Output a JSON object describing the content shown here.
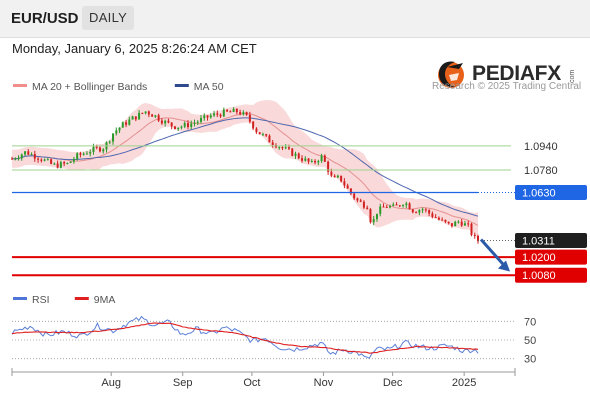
{
  "header": {
    "symbol": "EUR/USD",
    "timeframe": "DAILY"
  },
  "timestamp": "Monday, January 6, 2025 8:26:24 AM CET",
  "branding": {
    "logo_text": "PEDIAFX",
    "logo_suffix": ".com",
    "copyright": "Research © 2025 Trading Central"
  },
  "legend_main": [
    {
      "label": "MA 20 + Bollinger Bands",
      "color": "#f08e8e"
    },
    {
      "label": "MA 50",
      "color": "#2e4a8c"
    }
  ],
  "legend_rsi": [
    {
      "label": "RSI",
      "color": "#4f76d6"
    },
    {
      "label": "9MA",
      "color": "#e02020"
    }
  ],
  "colors": {
    "up": "#2a9b2a",
    "down": "#d22020",
    "support": "#e00000",
    "resistance": "#1f66e5",
    "pivot": "#9fd38f",
    "current": "#1f1f1f",
    "band": "#f7cccc",
    "ma20": "#e59090",
    "ma50": "#5068b0",
    "rsi": "#5a7fd8",
    "rsi_ma": "#e02020",
    "arrow": "#2b5aa8"
  },
  "chart_data": {
    "type": "candlestick",
    "y_range": [
      1.0035,
      1.1265
    ],
    "x_ticks": [
      {
        "label": "Aug",
        "day": 43
      },
      {
        "label": "Sep",
        "day": 74
      },
      {
        "label": "Oct",
        "day": 104
      },
      {
        "label": "Nov",
        "day": 135
      },
      {
        "label": "Dec",
        "day": 165
      },
      {
        "label": "2025",
        "day": 196
      }
    ],
    "levels": [
      {
        "value": 1.094,
        "label": "1.0940",
        "kind": "pivot"
      },
      {
        "value": 1.078,
        "label": "1.0780",
        "kind": "pivot"
      },
      {
        "value": 1.063,
        "label": "1.0630",
        "kind": "resistance"
      },
      {
        "value": 1.0311,
        "label": "1.0311",
        "kind": "current"
      },
      {
        "value": 1.02,
        "label": "1.0200",
        "kind": "support"
      },
      {
        "value": 1.008,
        "label": "1.0080",
        "kind": "support"
      }
    ],
    "close_path": [
      [
        0,
        1.0855
      ],
      [
        6,
        1.09
      ],
      [
        12,
        1.086
      ],
      [
        18,
        1.081
      ],
      [
        24,
        1.082
      ],
      [
        28,
        1.087
      ],
      [
        34,
        1.091
      ],
      [
        40,
        1.093
      ],
      [
        44,
        1.103
      ],
      [
        48,
        1.108
      ],
      [
        52,
        1.112
      ],
      [
        58,
        1.117
      ],
      [
        62,
        1.114
      ],
      [
        66,
        1.11
      ],
      [
        70,
        1.107
      ],
      [
        74,
        1.107
      ],
      [
        80,
        1.11
      ],
      [
        86,
        1.114
      ],
      [
        92,
        1.116
      ],
      [
        98,
        1.117
      ],
      [
        102,
        1.113
      ],
      [
        106,
        1.104
      ],
      [
        112,
        1.097
      ],
      [
        118,
        1.092
      ],
      [
        124,
        1.087
      ],
      [
        130,
        1.082
      ],
      [
        134,
        1.087
      ],
      [
        136,
        1.082
      ],
      [
        139,
        1.071
      ],
      [
        142,
        1.073
      ],
      [
        146,
        1.064
      ],
      [
        150,
        1.057
      ],
      [
        154,
        1.054
      ],
      [
        156,
        1.041
      ],
      [
        158,
        1.05
      ],
      [
        162,
        1.054
      ],
      [
        166,
        1.053
      ],
      [
        170,
        1.057
      ],
      [
        174,
        1.051
      ],
      [
        178,
        1.052
      ],
      [
        182,
        1.048
      ],
      [
        186,
        1.044
      ],
      [
        190,
        1.041
      ],
      [
        194,
        1.044
      ],
      [
        198,
        1.04
      ],
      [
        200,
        1.033
      ],
      [
        202,
        1.031
      ]
    ],
    "rsi": {
      "y_range": [
        20,
        80
      ],
      "ticks": [
        70,
        50,
        30
      ],
      "rsi_path": [
        [
          0,
          58
        ],
        [
          8,
          65
        ],
        [
          15,
          55
        ],
        [
          22,
          59
        ],
        [
          30,
          54
        ],
        [
          37,
          65
        ],
        [
          44,
          60
        ],
        [
          50,
          68
        ],
        [
          56,
          73
        ],
        [
          62,
          66
        ],
        [
          68,
          69
        ],
        [
          74,
          55
        ],
        [
          80,
          62
        ],
        [
          86,
          56
        ],
        [
          92,
          63
        ],
        [
          97,
          60
        ],
        [
          104,
          49
        ],
        [
          110,
          52
        ],
        [
          116,
          42
        ],
        [
          122,
          40
        ],
        [
          128,
          43
        ],
        [
          134,
          47
        ],
        [
          138,
          35
        ],
        [
          144,
          40
        ],
        [
          150,
          36
        ],
        [
          154,
          29
        ],
        [
          158,
          40
        ],
        [
          164,
          40
        ],
        [
          170,
          47
        ],
        [
          176,
          43
        ],
        [
          182,
          41
        ],
        [
          188,
          44
        ],
        [
          192,
          42
        ],
        [
          196,
          38
        ],
        [
          200,
          40
        ],
        [
          202,
          38
        ]
      ],
      "ma_path": [
        [
          0,
          57
        ],
        [
          10,
          59
        ],
        [
          20,
          58
        ],
        [
          30,
          58
        ],
        [
          40,
          60
        ],
        [
          50,
          63
        ],
        [
          60,
          68
        ],
        [
          68,
          68
        ],
        [
          76,
          63
        ],
        [
          86,
          60
        ],
        [
          96,
          58
        ],
        [
          106,
          52
        ],
        [
          116,
          46
        ],
        [
          126,
          43
        ],
        [
          136,
          42
        ],
        [
          146,
          38
        ],
        [
          156,
          36
        ],
        [
          166,
          40
        ],
        [
          176,
          43
        ],
        [
          186,
          42
        ],
        [
          196,
          41
        ],
        [
          202,
          40
        ]
      ]
    }
  }
}
